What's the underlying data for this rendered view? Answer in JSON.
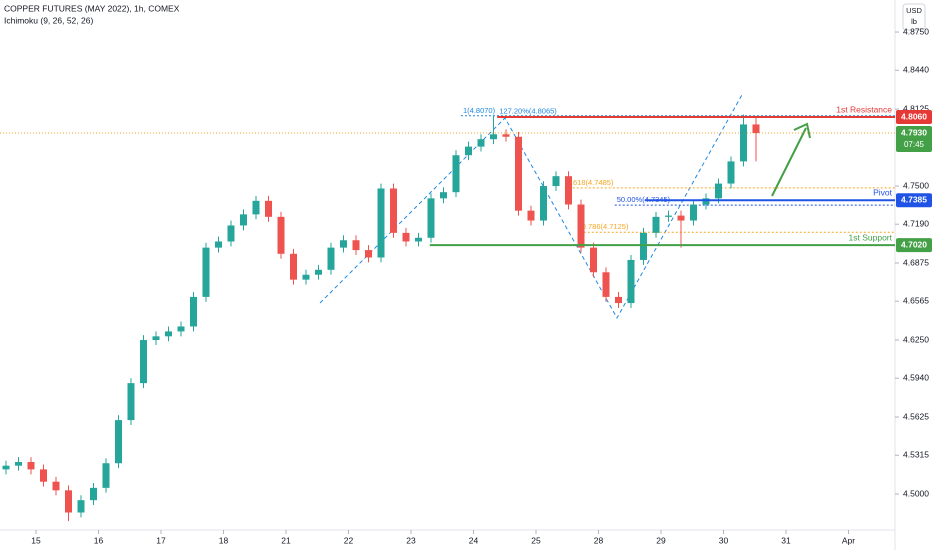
{
  "chart_data": {
    "type": "candlestick",
    "title": "COPPER FUTURES (MAY 2022), 1h, COMEX",
    "subtitle": "Ichimoku (9, 26, 52, 26)",
    "currency": "USD",
    "unit": "lb",
    "up_color": "#26a69a",
    "down_color": "#ef5350",
    "x": [
      -0.48,
      -0.28,
      -0.08,
      0.12,
      0.32,
      0.52,
      0.72,
      0.92,
      1.12,
      1.32,
      1.52,
      1.72,
      1.92,
      2.12,
      2.32,
      2.52,
      2.72,
      2.92,
      3.12,
      3.32,
      3.52,
      3.72,
      3.92,
      4.12,
      4.32,
      4.52,
      4.72,
      4.92,
      5.12,
      5.32,
      5.52,
      5.72,
      5.92,
      6.12,
      6.32,
      6.52,
      6.72,
      6.92,
      7.12,
      7.32,
      7.52,
      7.72,
      7.92,
      8.12,
      8.32,
      8.52,
      8.72,
      8.92,
      9.12,
      9.32,
      9.52,
      9.72,
      9.92,
      10.12,
      10.32,
      10.52,
      10.72,
      10.92,
      11.12,
      11.32,
      11.52
    ],
    "open": [
      4.52,
      4.523,
      4.526,
      4.52,
      4.51,
      4.503,
      4.485,
      4.495,
      4.505,
      4.525,
      4.56,
      4.59,
      4.625,
      4.628,
      4.632,
      4.636,
      4.66,
      4.7,
      4.705,
      4.718,
      4.727,
      4.738,
      4.725,
      4.695,
      4.674,
      4.678,
      4.682,
      4.7,
      4.706,
      4.698,
      4.692,
      4.748,
      4.712,
      4.705,
      4.708,
      4.74,
      4.745,
      4.775,
      4.782,
      4.788,
      4.792,
      4.79,
      4.73,
      4.722,
      4.75,
      4.758,
      4.735,
      4.7,
      4.68,
      4.66,
      4.655,
      4.69,
      4.712,
      4.725,
      4.726,
      4.722,
      4.735,
      4.74,
      4.752,
      4.77,
      4.8
    ],
    "high": [
      4.527,
      4.53,
      4.53,
      4.524,
      4.514,
      4.507,
      4.499,
      4.509,
      4.529,
      4.564,
      4.594,
      4.629,
      4.632,
      4.636,
      4.64,
      4.664,
      4.704,
      4.709,
      4.722,
      4.731,
      4.742,
      4.742,
      4.729,
      4.699,
      4.682,
      4.686,
      4.704,
      4.71,
      4.71,
      4.702,
      4.752,
      4.752,
      4.716,
      4.712,
      4.744,
      4.749,
      4.779,
      4.786,
      4.792,
      4.807,
      4.796,
      4.794,
      4.734,
      4.754,
      4.762,
      4.762,
      4.739,
      4.704,
      4.684,
      4.664,
      4.694,
      4.716,
      4.729,
      4.73,
      4.73,
      4.739,
      4.744,
      4.756,
      4.774,
      4.808,
      4.806
    ],
    "low": [
      4.516,
      4.519,
      4.516,
      4.506,
      4.499,
      4.478,
      4.481,
      4.491,
      4.501,
      4.521,
      4.556,
      4.586,
      4.621,
      4.624,
      4.628,
      4.632,
      4.656,
      4.696,
      4.701,
      4.714,
      4.723,
      4.721,
      4.691,
      4.67,
      4.67,
      4.674,
      4.678,
      4.696,
      4.694,
      4.688,
      4.688,
      4.708,
      4.701,
      4.701,
      4.704,
      4.736,
      4.741,
      4.771,
      4.778,
      4.784,
      4.786,
      4.726,
      4.718,
      4.718,
      4.746,
      4.731,
      4.696,
      4.676,
      4.656,
      4.651,
      4.651,
      4.686,
      4.708,
      4.721,
      4.7,
      4.718,
      4.731,
      4.736,
      4.748,
      4.766,
      4.77
    ],
    "close": [
      4.523,
      4.526,
      4.52,
      4.51,
      4.503,
      4.485,
      4.495,
      4.505,
      4.525,
      4.56,
      4.59,
      4.625,
      4.628,
      4.632,
      4.636,
      4.66,
      4.7,
      4.705,
      4.718,
      4.727,
      4.738,
      4.725,
      4.695,
      4.674,
      4.678,
      4.682,
      4.7,
      4.706,
      4.698,
      4.692,
      4.748,
      4.712,
      4.705,
      4.708,
      4.74,
      4.745,
      4.775,
      4.782,
      4.788,
      4.792,
      4.79,
      4.73,
      4.722,
      4.75,
      4.758,
      4.735,
      4.7,
      4.68,
      4.66,
      4.655,
      4.69,
      4.712,
      4.725,
      4.726,
      4.722,
      4.735,
      4.74,
      4.752,
      4.77,
      4.8,
      4.793
    ],
    "xlim": [
      -0.576,
      13.744
    ],
    "xticks": [
      {
        "value": 0,
        "label": "15"
      },
      {
        "value": 1,
        "label": "16"
      },
      {
        "value": 2,
        "label": "17"
      },
      {
        "value": 3,
        "label": "18"
      },
      {
        "value": 4,
        "label": "21"
      },
      {
        "value": 5,
        "label": "22"
      },
      {
        "value": 6,
        "label": "23"
      },
      {
        "value": 7,
        "label": "24"
      },
      {
        "value": 8,
        "label": "25"
      },
      {
        "value": 9,
        "label": "28"
      },
      {
        "value": 10,
        "label": "29"
      },
      {
        "value": 11,
        "label": "30"
      },
      {
        "value": 12,
        "label": "31"
      },
      {
        "value": 13,
        "label": "Apr"
      }
    ],
    "ylim": [
      4.4708,
      4.901
    ],
    "yticks": [
      {
        "value": 4.5,
        "label": "4.5000"
      },
      {
        "value": 4.5315,
        "label": "4.5315"
      },
      {
        "value": 4.5625,
        "label": "4.5625"
      },
      {
        "value": 4.594,
        "label": "4.5940"
      },
      {
        "value": 4.625,
        "label": "4.6250"
      },
      {
        "value": 4.6565,
        "label": "4.6565"
      },
      {
        "value": 4.6875,
        "label": "4.6875"
      },
      {
        "value": 4.719,
        "label": "4.7190"
      },
      {
        "value": 4.75,
        "label": "4.7500"
      },
      {
        "value": 4.8125,
        "label": "4.8125"
      },
      {
        "value": 4.844,
        "label": "4.8440"
      },
      {
        "value": 4.875,
        "label": "4.8750"
      }
    ],
    "levels": [
      {
        "name": "1st Resistance",
        "value": 4.806,
        "axis_label": "4.8060",
        "x_start": 7.38,
        "color": "#e53935"
      },
      {
        "name": "Pivot",
        "value": 4.7385,
        "axis_label": "4.7385",
        "x_start": 9.74,
        "color": "#1e53e5"
      },
      {
        "name": "1st Support",
        "value": 4.702,
        "axis_label": "4.7020",
        "x_start": 6.3,
        "color": "#43a047"
      }
    ],
    "fib_levels": [
      {
        "label": "0.618(4.7485)",
        "value": 4.7485,
        "x_start": 8.46,
        "color": "#f5a623"
      },
      {
        "label": "50.00%(4.7345)",
        "value": 4.7345,
        "x_start": 9.26,
        "color": "#1e53e5"
      },
      {
        "label": "0.786(4.7125)",
        "value": 4.7125,
        "x_start": 8.7,
        "color": "#f5a623"
      },
      {
        "label": "127.20%(4.8065)",
        "value": 4.8065,
        "x_start": 7.38,
        "color": "#1e88e5"
      },
      {
        "label": "1(4.8070)",
        "value": 4.807,
        "x_start": 6.8,
        "color": "#1e88e5"
      }
    ],
    "last_price": {
      "value": 4.793,
      "label": "4.7930",
      "countdown": "07:45",
      "color": "#43a047"
    }
  }
}
